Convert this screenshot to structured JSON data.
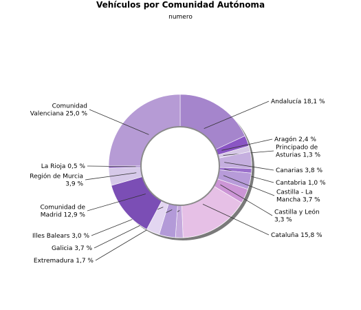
{
  "chart_data": {
    "type": "pie",
    "title": "Vehículos por Comunidad Autónoma",
    "subtitle": "numero",
    "slices": [
      {
        "label": [
          "Andalucía 18,1 %"
        ],
        "value": 18.1,
        "color": "#a585cc"
      },
      {
        "label": [
          "Aragón 2,4 %"
        ],
        "value": 2.4,
        "color": "#8a55c4"
      },
      {
        "label": [
          "Principado de",
          "Asturias 1,3 %"
        ],
        "value": 1.3,
        "color": "#d6c8e6"
      },
      {
        "label": [
          "Canarias 3,8 %"
        ],
        "value": 3.8,
        "color": "#c5afdf"
      },
      {
        "label": [
          "Cantabria 1,0 %"
        ],
        "value": 1.0,
        "color": "#9a6fcb"
      },
      {
        "label": [
          "Castilla - La",
          "Mancha 3,7 %"
        ],
        "value": 3.7,
        "color": "#b79bd9"
      },
      {
        "label": [
          "Castilla y León",
          "3,3 %"
        ],
        "value": 3.3,
        "color": "#cc95d6"
      },
      {
        "label": [
          "Cataluña 15,8 %"
        ],
        "value": 15.8,
        "color": "#e6c0e6"
      },
      {
        "label": [
          "Extremadura 1,7 %"
        ],
        "value": 1.7,
        "color": "#c5aadd"
      },
      {
        "label": [
          "Galicia 3,7 %"
        ],
        "value": 3.7,
        "color": "#b39ad8"
      },
      {
        "label": [
          "Illes Balears 3,0 %"
        ],
        "value": 3.0,
        "color": "#e3d6f1"
      },
      {
        "label": [
          "Comunidad de",
          "Madrid 12,9 %"
        ],
        "value": 12.9,
        "color": "#7b4eb5"
      },
      {
        "label": [
          "Región de Murcia",
          "3,9 %"
        ],
        "value": 3.9,
        "color": "#d6c9e9"
      },
      {
        "label": [
          "La Rioja 0,5 %"
        ],
        "value": 0.5,
        "color": "#8e66c0"
      },
      {
        "label": [
          "Comunidad",
          "Valenciana 25,0 %"
        ],
        "value": 25.0,
        "color": "#b69bd5"
      }
    ]
  }
}
